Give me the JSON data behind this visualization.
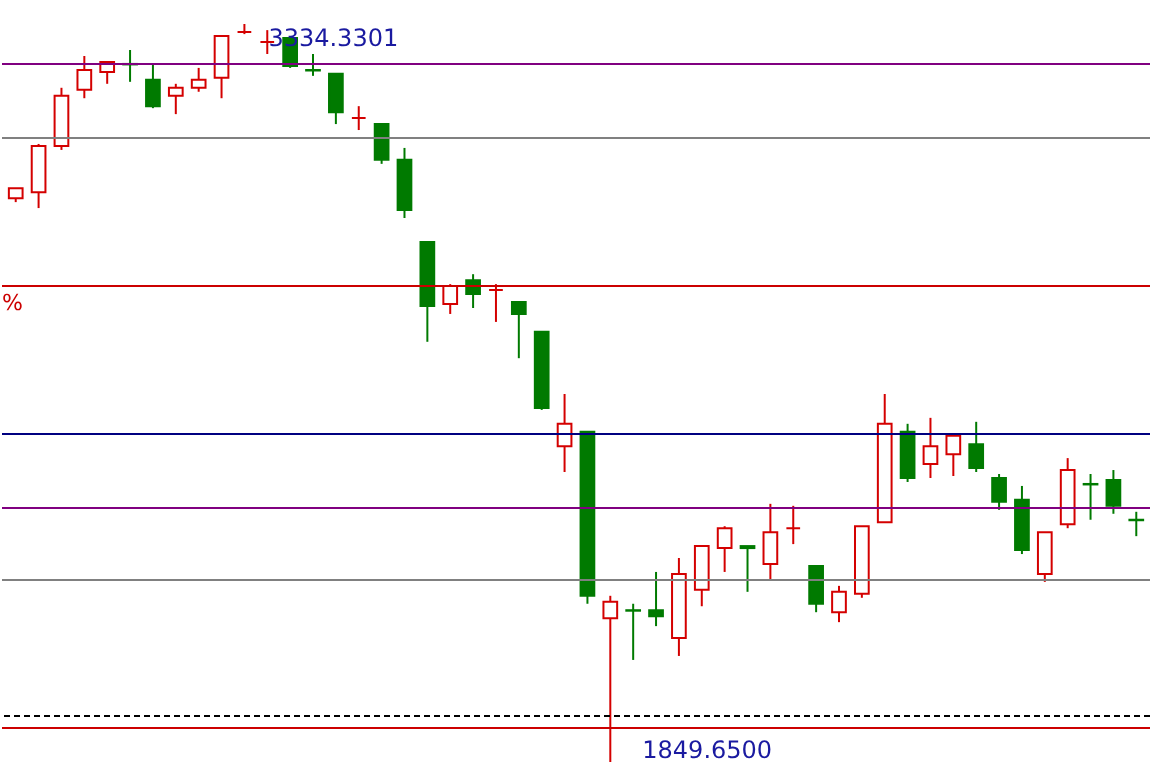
{
  "chart_data": {
    "type": "candlestick",
    "categories": [
      null,
      null,
      null,
      null,
      null,
      null,
      null,
      null,
      null,
      null,
      null,
      null,
      null,
      null,
      null,
      null,
      null,
      null,
      null,
      null,
      null,
      null,
      null,
      null,
      null,
      null,
      null,
      null,
      null,
      null,
      null,
      null,
      null,
      null,
      null,
      null,
      null,
      null,
      null,
      null,
      null,
      null,
      null,
      null,
      null,
      null,
      null,
      null,
      null,
      null
    ],
    "ohlc": [
      [
        2984,
        3004,
        2976,
        3004
      ],
      [
        2996,
        3093,
        2964,
        3089
      ],
      [
        3089,
        3206,
        3081,
        3190
      ],
      [
        3202,
        3270,
        3185,
        3242
      ],
      [
        3238,
        3258,
        3214,
        3258
      ],
      [
        3254,
        3282,
        3218,
        3253
      ],
      [
        3222,
        3254,
        3165,
        3169
      ],
      [
        3190,
        3214,
        3153,
        3206
      ],
      [
        3206,
        3246,
        3198,
        3222
      ],
      [
        3226,
        3310,
        3185,
        3310
      ],
      [
        3318,
        3334.3301,
        3314,
        3318
      ],
      [
        3298,
        3322,
        3274,
        3298
      ],
      [
        3306,
        3306,
        3246,
        3250
      ],
      [
        3242,
        3274,
        3230,
        3241
      ],
      [
        3234,
        3234,
        3133,
        3157
      ],
      [
        3145,
        3169,
        3121,
        3145
      ],
      [
        3133,
        3133,
        3053,
        3061
      ],
      [
        3061,
        3085,
        2944,
        2960
      ],
      [
        2896,
        2896,
        2695,
        2767
      ],
      [
        2771,
        2811,
        2751,
        2807
      ],
      [
        2819,
        2831,
        2763,
        2791
      ],
      [
        2799,
        2811,
        2735,
        2799
      ],
      [
        2775,
        2775,
        2662,
        2751
      ],
      [
        2715,
        2715,
        2558,
        2562
      ],
      [
        2485,
        2590,
        2433,
        2530
      ],
      [
        2514,
        2514,
        2168,
        2184
      ],
      [
        2139,
        2184,
        1849.65,
        2172
      ],
      [
        2155,
        2168,
        2055,
        2154
      ],
      [
        2155,
        2232,
        2123,
        2143
      ],
      [
        2099,
        2260,
        2063,
        2228
      ],
      [
        2196,
        2284,
        2163,
        2284
      ],
      [
        2280,
        2324,
        2232,
        2320
      ],
      [
        2284,
        2284,
        2192,
        2280
      ],
      [
        2248,
        2369,
        2216,
        2312
      ],
      [
        2320,
        2365,
        2288,
        2320
      ],
      [
        2244,
        2244,
        2151,
        2168
      ],
      [
        2151,
        2204,
        2131,
        2192
      ],
      [
        2188,
        2324,
        2180,
        2324
      ],
      [
        2332,
        2590,
        2332,
        2530
      ],
      [
        2514,
        2530,
        2413,
        2421
      ],
      [
        2449,
        2542,
        2421,
        2485
      ],
      [
        2469,
        2506,
        2425,
        2506
      ],
      [
        2489,
        2534,
        2433,
        2441
      ],
      [
        2421,
        2429,
        2357,
        2373
      ],
      [
        2377,
        2405,
        2268,
        2276
      ],
      [
        2228,
        2312,
        2212,
        2312
      ],
      [
        2328,
        2461,
        2320,
        2437
      ],
      [
        2409,
        2429,
        2337,
        2408
      ],
      [
        2417,
        2437,
        2349,
        2365
      ],
      [
        2337,
        2353,
        2304,
        2336
      ]
    ],
    "colors": [
      "#d40000",
      "#d40000",
      "#d40000",
      "#d40000",
      "#d40000",
      "#007a00",
      "#007a00",
      "#d40000",
      "#d40000",
      "#d40000",
      "#d40000",
      "#d40000",
      "#007a00",
      "#007a00",
      "#007a00",
      "#d40000",
      "#007a00",
      "#007a00",
      "#007a00",
      "#d40000",
      "#007a00",
      "#d40000",
      "#007a00",
      "#007a00",
      "#d40000",
      "#007a00",
      "#d40000",
      "#007a00",
      "#007a00",
      "#d40000",
      "#d40000",
      "#d40000",
      "#007a00",
      "#d40000",
      "#d40000",
      "#007a00",
      "#d40000",
      "#d40000",
      "#d40000",
      "#007a00",
      "#d40000",
      "#d40000",
      "#007a00",
      "#007a00",
      "#007a00",
      "#d40000",
      "#d40000",
      "#007a00",
      "#007a00",
      "#007a00"
    ],
    "ylim": [
      1841.6,
      3382.6
    ],
    "tick_labels": false,
    "ref_lines": [
      {
        "axis": "y",
        "value": 3254,
        "color": "#800080"
      },
      {
        "axis": "y",
        "value": 3105,
        "color": "#808080"
      },
      {
        "axis": "y",
        "value": 2807,
        "color": "#cc0000",
        "label": "%"
      },
      {
        "axis": "y",
        "value": 2509.5,
        "color": "#000080"
      },
      {
        "axis": "y",
        "value": 2360.6,
        "color": "#800080"
      },
      {
        "axis": "y",
        "value": 2216,
        "color": "#808080"
      },
      {
        "axis": "y",
        "value": 1942.2,
        "color": "#000000",
        "line_style": "dashed"
      },
      {
        "axis": "y",
        "value": 1918,
        "color": "#cc0000"
      }
    ],
    "annotations": [
      "3334.3301",
      "1849.6500"
    ]
  }
}
